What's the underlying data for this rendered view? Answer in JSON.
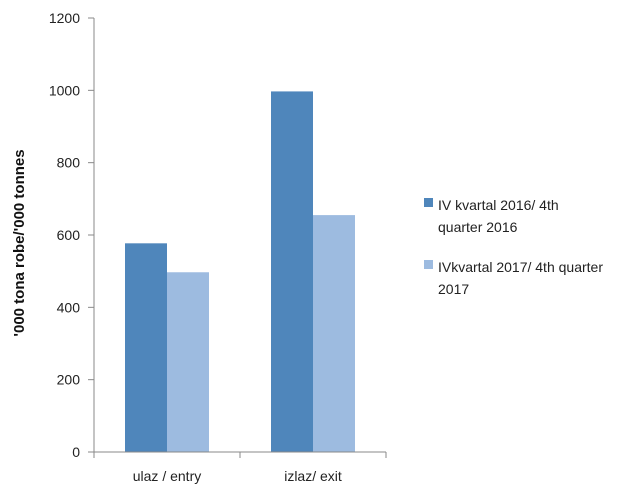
{
  "chart_data": {
    "type": "bar",
    "categories": [
      "ulaz / entry",
      "izlaz/ exit"
    ],
    "series": [
      {
        "name": "IV kvartal 2016/ 4th quarter 2016",
        "legend_lines": [
          "IV kvartal 2016/ 4th",
          "quarter 2016"
        ],
        "values": [
          577,
          997
        ],
        "color": "#4f86bb"
      },
      {
        "name": "IVkvartal 2017/ 4th quarter 2017",
        "legend_lines": [
          "IVkvartal 2017/ 4th quarter",
          "2017"
        ],
        "values": [
          497,
          655
        ],
        "color": "#9dbbe0"
      }
    ],
    "yticks": [
      0,
      200,
      400,
      600,
      800,
      1000,
      1200
    ],
    "ytick_labels": [
      "0",
      "200",
      "400",
      "600",
      "800",
      "1000",
      "1200"
    ],
    "ylim": [
      0,
      1200
    ],
    "ylabel": "'000 tona robe/'000 tonnes",
    "xlabel": "",
    "title": "",
    "grid": false,
    "legend_position": "right"
  }
}
